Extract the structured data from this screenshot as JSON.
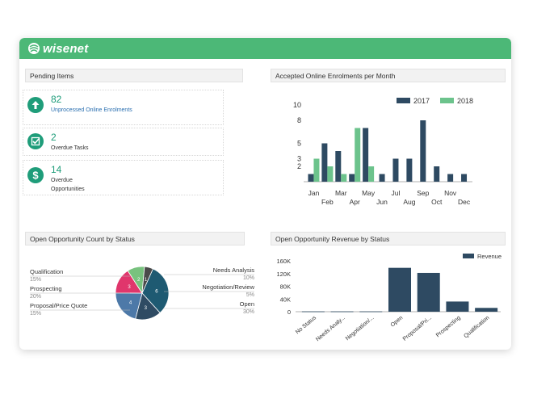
{
  "app": {
    "logo_text": "wisenet"
  },
  "pending": {
    "title": "Pending Items",
    "items": [
      {
        "count": "82",
        "label": "Unprocessed Online Enrolments",
        "icon": "arrow-up-icon"
      },
      {
        "count": "2",
        "label": "Overdue Tasks",
        "icon": "checkbox-icon"
      },
      {
        "count": "14",
        "label": "Overdue Opportunities",
        "icon": "dollar-icon"
      }
    ]
  },
  "colors": {
    "brand": "#4cb877",
    "accent": "#1f9d7a",
    "series_2017": "#2e4a62",
    "series_2018": "#6cc38c"
  },
  "charts": {
    "enrolments": {
      "title": "Accepted Online Enrolments per Month"
    },
    "count_status": {
      "title": "Open Opportunity Count by Status",
      "labels_left": [
        {
          "name": "Qualification",
          "pct": "15%"
        },
        {
          "name": "Prospecting",
          "pct": "20%"
        },
        {
          "name": "Proposal/Price Quote",
          "pct": "15%"
        }
      ],
      "labels_right": [
        {
          "name": "Needs Analysis",
          "pct": "10%"
        },
        {
          "name": "Negotiation/Review",
          "pct": "5%"
        },
        {
          "name": "Open",
          "pct": "30%"
        }
      ]
    },
    "revenue_status": {
      "title": "Open Opportunity Revenue by Status"
    }
  },
  "chart_data": [
    {
      "type": "bar",
      "title": "Accepted Online Enrolments per Month",
      "categories": [
        "Jan",
        "Feb",
        "Mar",
        "Apr",
        "May",
        "Jun",
        "Jul",
        "Aug",
        "Sep",
        "Oct",
        "Nov",
        "Dec"
      ],
      "series": [
        {
          "name": "2017",
          "values": [
            1,
            5,
            4,
            1,
            7,
            1,
            3,
            3,
            8,
            2,
            1,
            1
          ]
        },
        {
          "name": "2018",
          "values": [
            3,
            2,
            1,
            7,
            2,
            0,
            0,
            0,
            0,
            0,
            0,
            0
          ]
        }
      ],
      "ylim": [
        0,
        10
      ],
      "yticks": [
        2,
        3,
        5,
        8,
        10
      ],
      "legend": "top-right"
    },
    {
      "type": "pie",
      "title": "Open Opportunity Count by Status",
      "slices": [
        {
          "name": "Open",
          "value": 6,
          "color": "#1e5a72"
        },
        {
          "name": "Proposal/Price Quote",
          "value": 3,
          "color": "#2f4b63"
        },
        {
          "name": "Prospecting",
          "value": 4,
          "color": "#4d79a8"
        },
        {
          "name": "Qualification",
          "value": 3,
          "color": "#e0366c"
        },
        {
          "name": "Needs Analysis",
          "value": 2,
          "color": "#78c27e"
        },
        {
          "name": "Negotiation/Review",
          "value": 1,
          "color": "#4a4a4a"
        }
      ]
    },
    {
      "type": "bar",
      "title": "Open Opportunity Revenue by Status",
      "categories": [
        "No Status",
        "Needs Analy...",
        "Negotiation/...",
        "Open",
        "Proposal/Pri...",
        "Prospecting",
        "Qualification"
      ],
      "series": [
        {
          "name": "Revenue",
          "values": [
            1000,
            1000,
            1000,
            138000,
            122000,
            32000,
            12000
          ]
        }
      ],
      "ylim": [
        0,
        160000
      ],
      "yticks": [
        "0",
        "40K",
        "80K",
        "120K",
        "160K"
      ],
      "legend": "top-right"
    }
  ]
}
